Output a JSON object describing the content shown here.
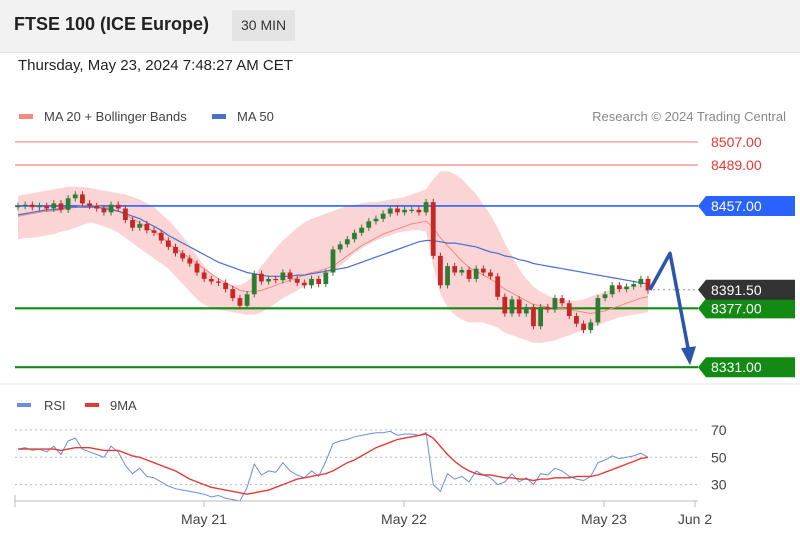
{
  "header": {
    "title": "FTSE 100 (ICE Europe)",
    "timeframe": "30 MIN",
    "datetime": "Thursday, May 23, 2024 7:48:27 AM CET"
  },
  "colors": {
    "ma20": "#f28b82",
    "band_fill": "#f9c7c7",
    "ma50": "#4a6fd0",
    "bull": "#2e7d32",
    "bear": "#c62828",
    "resistance": "#f28b82",
    "support": "#138a13",
    "pivot": "#2962ff",
    "arrow": "#2b55a8",
    "price_tag": "#333333",
    "rsi": "#6a8ee0",
    "rsi_ma": "#e53935"
  },
  "chart_data": [
    {
      "type": "candlestick",
      "title": "FTSE 100 (ICE Europe)",
      "legend": [
        "MA 20 + Bollinger Bands",
        "MA 50"
      ],
      "legend_position": "top-left",
      "credit": "Research © 2024 Trading Central",
      "ylim": [
        8321,
        8514
      ],
      "x_ticks": [
        "May 21",
        "May 22",
        "May 23",
        "Jun 2"
      ],
      "levels": [
        {
          "value": 8507.0,
          "label": "8507.00",
          "kind": "resistance"
        },
        {
          "value": 8489.0,
          "label": "8489.00",
          "kind": "resistance"
        },
        {
          "value": 8457.0,
          "label": "8457.00",
          "kind": "pivot"
        },
        {
          "value": 8377.0,
          "label": "8377.00",
          "kind": "support"
        },
        {
          "value": 8331.0,
          "label": "8331.00",
          "kind": "support"
        }
      ],
      "last_price": {
        "value": 8391.5,
        "label": "8391.50"
      },
      "forecast_path": [
        8391.5,
        8420,
        8331
      ],
      "close": [
        8457,
        8458,
        8456,
        8457,
        8455,
        8459,
        8454,
        8463,
        8466,
        8459,
        8457,
        8455,
        8452,
        8458,
        8455,
        8446,
        8440,
        8443,
        8438,
        8436,
        8430,
        8425,
        8420,
        8416,
        8412,
        8405,
        8400,
        8398,
        8397,
        8392,
        8385,
        8379,
        8388,
        8404,
        8398,
        8400,
        8399,
        8405,
        8400,
        8397,
        8395,
        8400,
        8396,
        8405,
        8423,
        8427,
        8431,
        8436,
        8440,
        8445,
        8447,
        8451,
        8455,
        8452,
        8454,
        8454,
        8452,
        8460,
        8418,
        8395,
        8410,
        8405,
        8407,
        8400,
        8408,
        8405,
        8402,
        8386,
        8373,
        8384,
        8373,
        8378,
        8363,
        8378,
        8376,
        8385,
        8381,
        8371,
        8365,
        8360,
        8366,
        8385,
        8388,
        8395,
        8392,
        8394,
        8396,
        8400,
        8391
      ],
      "ma20": [
        8449,
        8450,
        8451,
        8452,
        8453,
        8453,
        8454,
        8455,
        8456,
        8457,
        8458,
        8457,
        8456,
        8455,
        8453,
        8450,
        8447,
        8444,
        8440,
        8437,
        8433,
        8428,
        8424,
        8420,
        8416,
        8412,
        8408,
        8404,
        8400,
        8397,
        8394,
        8391,
        8390,
        8390,
        8391,
        8393,
        8395,
        8397,
        8399,
        8401,
        8403,
        8405,
        8406,
        8408,
        8410,
        8414,
        8418,
        8422,
        8426,
        8429,
        8432,
        8435,
        8437,
        8439,
        8441,
        8443,
        8444,
        8445,
        8440,
        8432,
        8426,
        8420,
        8414,
        8409,
        8406,
        8403,
        8400,
        8396,
        8392,
        8389,
        8386,
        8383,
        8380,
        8379,
        8378,
        8377,
        8377,
        8376,
        8375,
        8374,
        8373,
        8374,
        8375,
        8377,
        8379,
        8381,
        8383,
        8385,
        8386
      ],
      "bb_upper": [
        8465,
        8466,
        8467,
        8468,
        8469,
        8470,
        8471,
        8472,
        8472,
        8472,
        8471,
        8470,
        8469,
        8468,
        8467,
        8466,
        8464,
        8462,
        8459,
        8456,
        8451,
        8446,
        8440,
        8433,
        8426,
        8418,
        8410,
        8404,
        8399,
        8396,
        8395,
        8395,
        8398,
        8403,
        8410,
        8417,
        8424,
        8430,
        8435,
        8440,
        8444,
        8447,
        8449,
        8451,
        8453,
        8455,
        8457,
        8458,
        8459,
        8460,
        8460,
        8461,
        8462,
        8463,
        8464,
        8466,
        8468,
        8470,
        8478,
        8484,
        8484,
        8482,
        8478,
        8472,
        8466,
        8458,
        8450,
        8440,
        8428,
        8418,
        8408,
        8400,
        8394,
        8390,
        8387,
        8385,
        8384,
        8383,
        8383,
        8384,
        8386,
        8388,
        8390,
        8392,
        8393,
        8394,
        8395,
        8396,
        8397
      ],
      "bb_lower": [
        8431,
        8432,
        8432,
        8433,
        8434,
        8435,
        8437,
        8438,
        8440,
        8442,
        8444,
        8443,
        8441,
        8439,
        8436,
        8432,
        8428,
        8424,
        8420,
        8416,
        8412,
        8408,
        8402,
        8396,
        8390,
        8384,
        8380,
        8377,
        8376,
        8375,
        8374,
        8373,
        8372,
        8372,
        8374,
        8377,
        8381,
        8385,
        8388,
        8391,
        8394,
        8397,
        8400,
        8403,
        8406,
        8410,
        8415,
        8420,
        8424,
        8427,
        8430,
        8432,
        8434,
        8436,
        8437,
        8438,
        8438,
        8437,
        8410,
        8388,
        8378,
        8372,
        8368,
        8366,
        8366,
        8366,
        8364,
        8362,
        8358,
        8356,
        8354,
        8352,
        8350,
        8350,
        8351,
        8352,
        8354,
        8356,
        8358,
        8360,
        8362,
        8364,
        8366,
        8368,
        8370,
        8371,
        8372,
        8373,
        8374
      ],
      "ma50": [
        8450,
        8451,
        8452,
        8453,
        8454,
        8454,
        8455,
        8456,
        8456,
        8456,
        8456,
        8456,
        8455,
        8454,
        8453,
        8451,
        8449,
        8447,
        8444,
        8441,
        8438,
        8434,
        8431,
        8428,
        8425,
        8422,
        8419,
        8416,
        8413,
        8411,
        8409,
        8407,
        8405,
        8404,
        8403,
        8402,
        8402,
        8402,
        8402,
        8403,
        8403,
        8404,
        8405,
        8406,
        8407,
        8408,
        8409,
        8411,
        8413,
        8415,
        8417,
        8419,
        8421,
        8423,
        8425,
        8427,
        8429,
        8430,
        8430,
        8429,
        8428,
        8428,
        8427,
        8426,
        8425,
        8423,
        8421,
        8420,
        8418,
        8417,
        8415,
        8414,
        8412,
        8411,
        8410,
        8409,
        8408,
        8407,
        8406,
        8405,
        8404,
        8403,
        8402,
        8401,
        8400,
        8399,
        8398,
        8397,
        8396
      ]
    },
    {
      "type": "line",
      "legend": [
        "RSI",
        "9MA"
      ],
      "legend_position": "top-left",
      "ylim": [
        18,
        78
      ],
      "y_ticks": [
        "70",
        "50",
        "30"
      ],
      "series": [
        {
          "name": "RSI",
          "values": [
            56,
            57,
            55,
            56,
            54,
            58,
            52,
            62,
            64,
            56,
            54,
            52,
            50,
            58,
            54,
            44,
            38,
            42,
            36,
            35,
            32,
            29,
            27,
            26,
            25,
            24,
            23,
            21,
            22,
            20,
            19,
            18,
            28,
            45,
            37,
            40,
            39,
            46,
            40,
            37,
            35,
            40,
            36,
            47,
            60,
            62,
            63,
            65,
            66,
            67,
            68,
            68,
            69,
            66,
            67,
            67,
            66,
            68,
            30,
            25,
            38,
            34,
            36,
            32,
            40,
            37,
            35,
            30,
            32,
            38,
            32,
            35,
            30,
            38,
            37,
            42,
            40,
            36,
            34,
            33,
            36,
            46,
            48,
            51,
            49,
            50,
            51,
            53,
            50
          ]
        },
        {
          "name": "9MA",
          "values": [
            56,
            56,
            56,
            56,
            56,
            56,
            55,
            56,
            57,
            57,
            57,
            56,
            55,
            55,
            55,
            53,
            51,
            50,
            48,
            46,
            44,
            42,
            40,
            37,
            34,
            32,
            30,
            28,
            27,
            26,
            25,
            24,
            23,
            24,
            25,
            26,
            28,
            30,
            32,
            34,
            35,
            36,
            37,
            38,
            40,
            43,
            46,
            48,
            51,
            54,
            57,
            59,
            61,
            63,
            64,
            65,
            66,
            67,
            64,
            58,
            52,
            47,
            43,
            40,
            38,
            37,
            37,
            36,
            35,
            35,
            34,
            34,
            33,
            34,
            34,
            35,
            35,
            35,
            36,
            36,
            36,
            37,
            39,
            41,
            43,
            45,
            47,
            49,
            50
          ]
        }
      ]
    }
  ]
}
